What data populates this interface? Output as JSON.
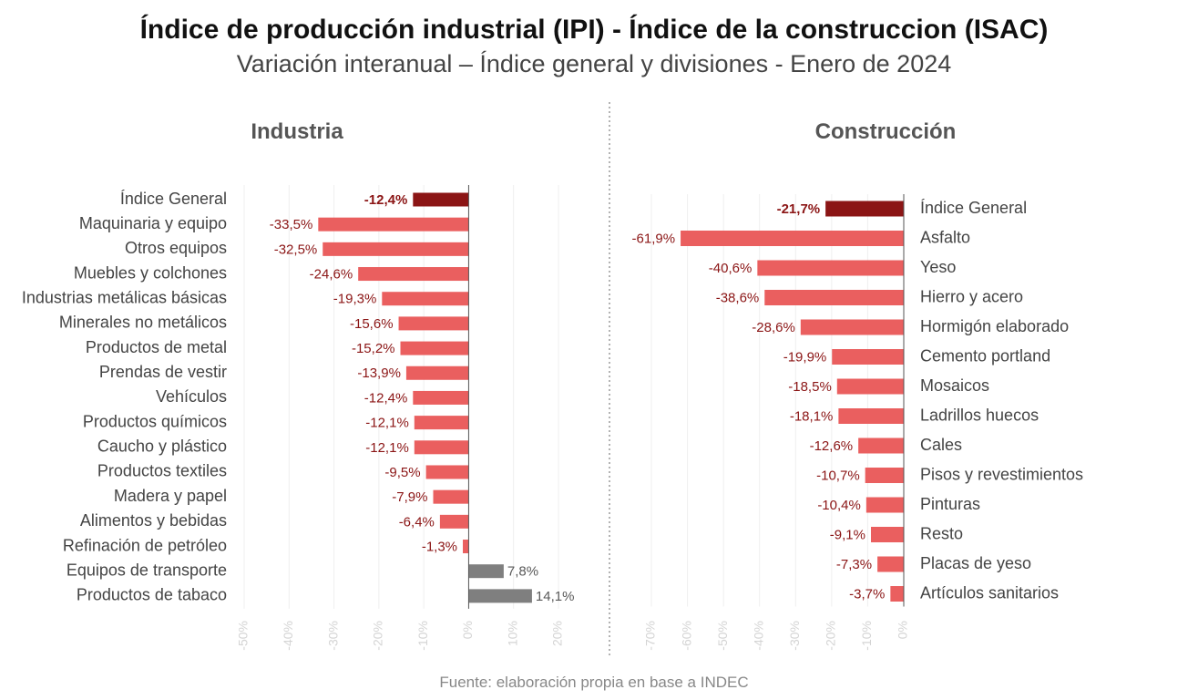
{
  "title": "Índice de producción industrial (IPI) - Índice de la construccion (ISAC)",
  "subtitle": "Variación interanual – Índice general y divisiones -  Enero de 2024",
  "source": "Fuente: elaboración propia en base a INDEC",
  "colors": {
    "highlight": "#8b1515",
    "negative": "#ea5f5f",
    "positive": "#7f7f7f",
    "label_dark": "#8b1515",
    "label_grey": "#595959"
  },
  "chart_data": [
    {
      "type": "bar",
      "orientation": "horizontal",
      "title": "Industria",
      "categories": [
        "Índice General",
        "Maquinaria y equipo",
        "Otros equipos",
        "Muebles y colchones",
        "Industrias metálicas básicas",
        "Minerales no metálicos",
        "Productos de metal",
        "Prendas de vestir",
        "Vehículos",
        "Productos químicos",
        "Caucho y plástico",
        "Productos textiles",
        "Madera y papel",
        "Alimentos y bebidas",
        "Refinación de petróleo",
        "Equipos de transporte",
        "Productos de tabaco"
      ],
      "values": [
        -12.4,
        -33.5,
        -32.5,
        -24.6,
        -19.3,
        -15.6,
        -15.2,
        -13.9,
        -12.4,
        -12.1,
        -12.1,
        -9.5,
        -7.9,
        -6.4,
        -1.3,
        7.8,
        14.1
      ],
      "value_labels": [
        "-12,4%",
        "-33,5%",
        "-32,5%",
        "-24,6%",
        "-19,3%",
        "-15,6%",
        "-15,2%",
        "-13,9%",
        "-12,4%",
        "-12,1%",
        "-12,1%",
        "-9,5%",
        "-7,9%",
        "-6,4%",
        "-1,3%",
        "7,8%",
        "14,1%"
      ],
      "xlim": [
        -50,
        20
      ],
      "ticks": [
        -50,
        -40,
        -30,
        -20,
        -10,
        0,
        10,
        20
      ],
      "tick_labels": [
        "-50%",
        "-40%",
        "-30%",
        "-20%",
        "-10%",
        "0%",
        "10%",
        "20%"
      ],
      "label_side": "left"
    },
    {
      "type": "bar",
      "orientation": "horizontal",
      "title": "Construcción",
      "categories": [
        "Índice General",
        "Asfalto",
        "Yeso",
        "Hierro y acero",
        "Hormigón elaborado",
        "Cemento portland",
        "Mosaicos",
        "Ladrillos huecos",
        "Cales",
        "Pisos y revestimientos",
        "Pinturas",
        "Resto",
        "Placas de yeso",
        "Artículos sanitarios"
      ],
      "values": [
        -21.7,
        -61.9,
        -40.6,
        -38.6,
        -28.6,
        -19.9,
        -18.5,
        -18.1,
        -12.6,
        -10.7,
        -10.4,
        -9.1,
        -7.3,
        -3.7
      ],
      "value_labels": [
        "-21,7%",
        "-61,9%",
        "-40,6%",
        "-38,6%",
        "-28,6%",
        "-19,9%",
        "-18,5%",
        "-18,1%",
        "-12,6%",
        "-10,7%",
        "-10,4%",
        "-9,1%",
        "-7,3%",
        "-3,7%"
      ],
      "xlim": [
        -70,
        0
      ],
      "ticks": [
        -70,
        -60,
        -50,
        -40,
        -30,
        -20,
        -10,
        0
      ],
      "tick_labels": [
        "-70%",
        "-60%",
        "-50%",
        "-40%",
        "-30%",
        "-20%",
        "-10%",
        "0%"
      ],
      "label_side": "right"
    }
  ]
}
